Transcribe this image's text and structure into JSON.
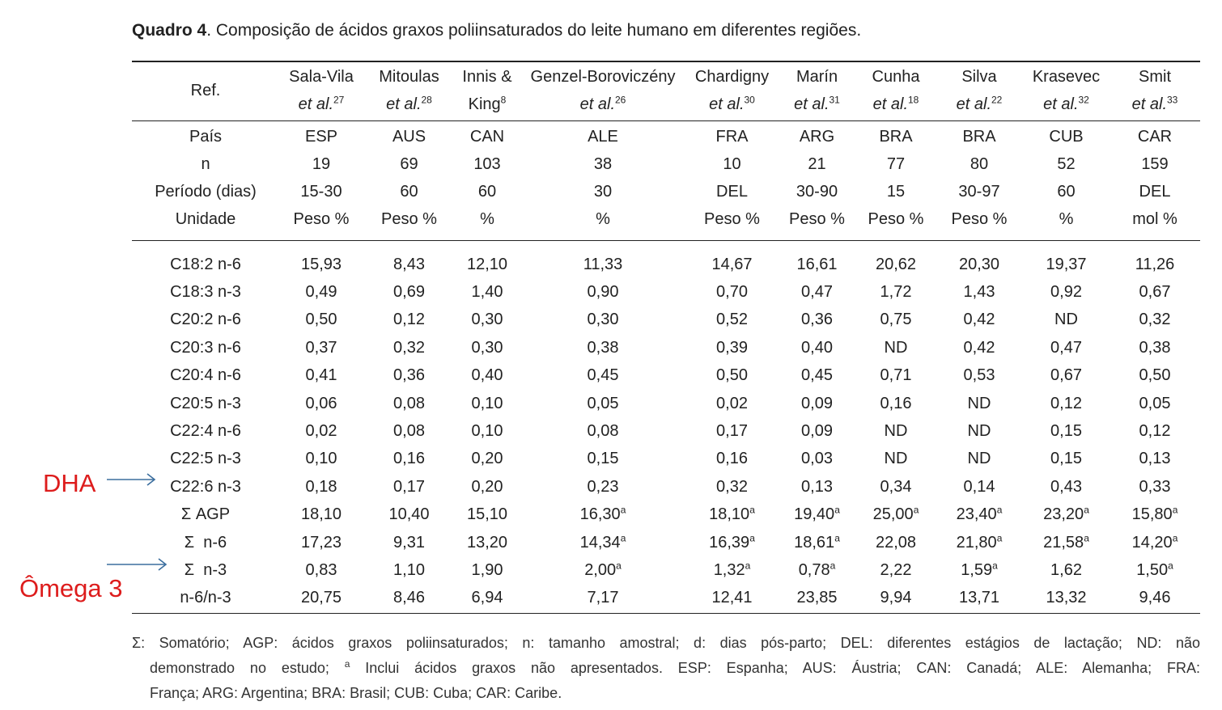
{
  "caption": {
    "label": "Quadro 4",
    "text": ". Composição de ácidos graxos poliinsaturados do leite humano em diferentes regiões."
  },
  "header": {
    "ref_label": "Ref.",
    "columns": [
      {
        "line1": "Sala-Vila",
        "line2": "et al.",
        "sup": "27"
      },
      {
        "line1": "Mitoulas",
        "line2": "et al.",
        "sup": "28"
      },
      {
        "line1": "Innis &",
        "line2": "King",
        "sup": "8",
        "plain": true
      },
      {
        "line1": "Genzel-Boroviczény",
        "line2": "et al.",
        "sup": "26"
      },
      {
        "line1": "Chardigny",
        "line2": "et al.",
        "sup": "30"
      },
      {
        "line1": "Marín",
        "line2": "et al.",
        "sup": "31"
      },
      {
        "line1": "Cunha",
        "line2": "et al.",
        "sup": "18"
      },
      {
        "line1": "Silva",
        "line2": "et al.",
        "sup": "22"
      },
      {
        "line1": "Krasevec",
        "line2": "et al.",
        "sup": "32"
      },
      {
        "line1": "Smit",
        "line2": "et al.",
        "sup": "33"
      }
    ]
  },
  "meta_rows": [
    {
      "label": "País",
      "values": [
        "ESP",
        "AUS",
        "CAN",
        "ALE",
        "FRA",
        "ARG",
        "BRA",
        "BRA",
        "CUB",
        "CAR"
      ]
    },
    {
      "label": "n",
      "values": [
        "19",
        "69",
        "103",
        "38",
        "10",
        "21",
        "77",
        "80",
        "52",
        "159"
      ]
    },
    {
      "label": "Período (dias)",
      "values": [
        "15-30",
        "60",
        "60",
        "30",
        "DEL",
        "30-90",
        "15",
        "30-97",
        "60",
        "DEL"
      ]
    },
    {
      "label": "Unidade",
      "values": [
        "Peso %",
        "Peso %",
        "%",
        "%",
        "Peso %",
        "Peso %",
        "Peso %",
        "Peso %",
        "%",
        "mol %"
      ]
    }
  ],
  "body_rows": [
    {
      "label": "C18:2 n-6",
      "values": [
        "15,93",
        "8,43",
        "12,10",
        "11,33",
        "14,67",
        "16,61",
        "20,62",
        "20,30",
        "19,37",
        "11,26"
      ]
    },
    {
      "label": "C18:3 n-3",
      "values": [
        "0,49",
        "0,69",
        "1,40",
        "0,90",
        "0,70",
        "0,47",
        "1,72",
        "1,43",
        "0,92",
        "0,67"
      ]
    },
    {
      "label": "C20:2 n-6",
      "values": [
        "0,50",
        "0,12",
        "0,30",
        "0,30",
        "0,52",
        "0,36",
        "0,75",
        "0,42",
        "ND",
        "0,32"
      ]
    },
    {
      "label": "C20:3 n-6",
      "values": [
        "0,37",
        "0,32",
        "0,30",
        "0,38",
        "0,39",
        "0,40",
        "ND",
        "0,42",
        "0,47",
        "0,38"
      ]
    },
    {
      "label": "C20:4 n-6",
      "values": [
        "0,41",
        "0,36",
        "0,40",
        "0,45",
        "0,50",
        "0,45",
        "0,71",
        "0,53",
        "0,67",
        "0,50"
      ]
    },
    {
      "label": "C20:5 n-3",
      "values": [
        "0,06",
        "0,08",
        "0,10",
        "0,05",
        "0,02",
        "0,09",
        "0,16",
        "ND",
        "0,12",
        "0,05"
      ]
    },
    {
      "label": "C22:4 n-6",
      "values": [
        "0,02",
        "0,08",
        "0,10",
        "0,08",
        "0,17",
        "0,09",
        "ND",
        "ND",
        "0,15",
        "0,12"
      ]
    },
    {
      "label": "C22:5 n-3",
      "values": [
        "0,10",
        "0,16",
        "0,20",
        "0,15",
        "0,16",
        "0,03",
        "ND",
        "ND",
        "0,15",
        "0,13"
      ]
    },
    {
      "label": "C22:6 n-3",
      "values": [
        "0,18",
        "0,17",
        "0,20",
        "0,23",
        "0,32",
        "0,13",
        "0,34",
        "0,14",
        "0,43",
        "0,33"
      ]
    },
    {
      "label": "Σ AGP",
      "values": [
        "18,10",
        "10,40",
        "15,10",
        "16,30",
        "18,10",
        "19,40",
        "25,00",
        "23,40",
        "23,20",
        "15,80"
      ],
      "sup": [
        "",
        "",
        "",
        "a",
        "a",
        "a",
        "a",
        "a",
        "a",
        "a"
      ]
    },
    {
      "label": "Σ  n-6",
      "values": [
        "17,23",
        "9,31",
        "13,20",
        "14,34",
        "16,39",
        "18,61",
        "22,08",
        "21,80",
        "21,58",
        "14,20"
      ],
      "sup": [
        "",
        "",
        "",
        "a",
        "a",
        "a",
        "",
        "a",
        "a",
        "a"
      ]
    },
    {
      "label": "Σ  n-3",
      "values": [
        "0,83",
        "1,10",
        "1,90",
        "2,00",
        "1,32",
        "0,78",
        "2,22",
        "1,59",
        "1,62",
        "1,50"
      ],
      "sup": [
        "",
        "",
        "",
        "a",
        "a",
        "a",
        "",
        "a",
        "",
        "a"
      ]
    },
    {
      "label": "n-6/n-3",
      "values": [
        "20,75",
        "8,46",
        "6,94",
        "7,17",
        "12,41",
        "23,85",
        "9,94",
        "13,71",
        "13,32",
        "9,46"
      ]
    }
  ],
  "annotations": {
    "dha": "DHA",
    "omega3": "Ômega 3",
    "color": "#dd1c1c",
    "arrow_color": "#3b6e9e"
  },
  "footnote": {
    "line1": "Σ: Somatório; AGP: ácidos graxos poliinsaturados; n: tamanho amostral; d: dias pós-parto; DEL: diferentes estágios de lactação; ND: não",
    "line2_pre": "demonstrado no estudo; ",
    "line2_sup": "a",
    "line2_post": " Inclui ácidos graxos não apresentados. ESP: Espanha; AUS: Áustria; CAN: Canadá; ALE: Alemanha; FRA:",
    "line3": "França; ARG: Argentina; BRA: Brasil; CUB: Cuba; CAR: Caribe."
  }
}
